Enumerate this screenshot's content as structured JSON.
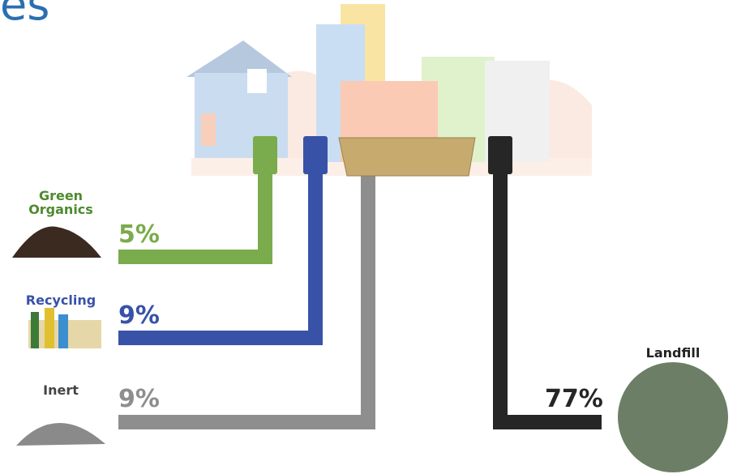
{
  "header": {
    "title": "es"
  },
  "streams": [
    {
      "label": "Green Organics",
      "percent": "5%"
    },
    {
      "label": "Recycling",
      "percent": "9%"
    },
    {
      "label": "Inert",
      "percent": "9%"
    },
    {
      "label": "Landfill",
      "percent": "77%"
    }
  ]
}
